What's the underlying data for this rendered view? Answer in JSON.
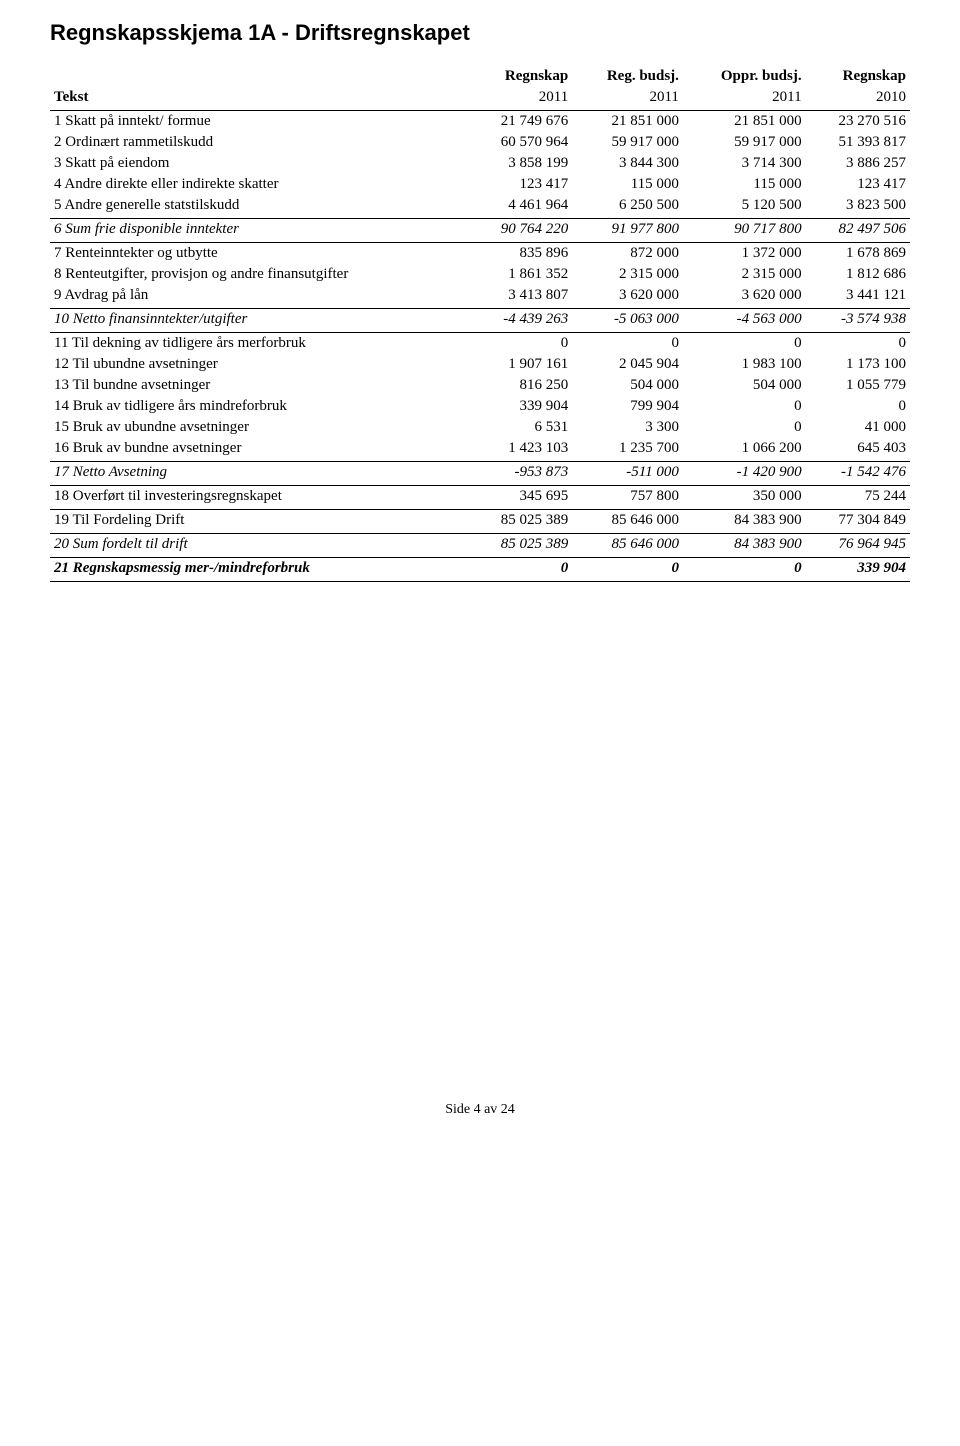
{
  "title": "Regnskapsskjema 1A - Driftsregnskapet",
  "header_top": [
    "",
    "Regnskap",
    "Reg. budsj.",
    "Oppr. budsj.",
    "Regnskap"
  ],
  "header_bottom": [
    "Tekst",
    "2011",
    "2011",
    "2011",
    "2010"
  ],
  "rows": [
    {
      "cls": "",
      "cells": [
        "1  Skatt på inntekt/ formue",
        "21 749 676",
        "21 851 000",
        "21 851 000",
        "23 270 516"
      ]
    },
    {
      "cls": "",
      "cells": [
        "2  Ordinært rammetilskudd",
        "60 570 964",
        "59 917 000",
        "59 917 000",
        "51 393 817"
      ]
    },
    {
      "cls": "",
      "cells": [
        "3  Skatt på eiendom",
        "3 858 199",
        "3 844 300",
        "3 714 300",
        "3 886 257"
      ]
    },
    {
      "cls": "",
      "cells": [
        "4  Andre direkte eller indirekte skatter",
        "123 417",
        "115 000",
        "115 000",
        "123 417"
      ]
    },
    {
      "cls": "sec-bot",
      "cells": [
        "5  Andre generelle statstilskudd",
        "4 461 964",
        "6 250 500",
        "5 120 500",
        "3 823 500"
      ]
    },
    {
      "cls": "italic sec-bot",
      "cells": [
        "6  Sum frie disponible inntekter",
        "90 764 220",
        "91 977 800",
        "90 717 800",
        "82 497 506"
      ]
    },
    {
      "cls": "",
      "cells": [
        "7  Renteinntekter og utbytte",
        "835 896",
        "872 000",
        "1 372 000",
        "1 678 869"
      ]
    },
    {
      "cls": "",
      "cells": [
        "8  Renteutgifter, provisjon og andre finansutgifter",
        "1 861 352",
        "2 315 000",
        "2 315 000",
        "1 812 686"
      ]
    },
    {
      "cls": "sec-bot",
      "cells": [
        "9  Avdrag på lån",
        "3 413 807",
        "3 620 000",
        "3 620 000",
        "3 441 121"
      ]
    },
    {
      "cls": "italic sec-bot",
      "cells": [
        "10  Netto finansinntekter/utgifter",
        "-4 439 263",
        "-5 063 000",
        "-4 563 000",
        "-3 574 938"
      ]
    },
    {
      "cls": "",
      "cells": [
        "11 Til dekning av tidligere års merforbruk",
        "0",
        "0",
        "0",
        "0"
      ]
    },
    {
      "cls": "",
      "cells": [
        "12 Til ubundne avsetninger",
        "1 907 161",
        "2 045 904",
        "1 983 100",
        "1 173 100"
      ]
    },
    {
      "cls": "",
      "cells": [
        "13 Til bundne avsetninger",
        "816 250",
        "504 000",
        "504 000",
        "1 055 779"
      ]
    },
    {
      "cls": "",
      "cells": [
        "14 Bruk av tidligere års mindreforbruk",
        "339 904",
        "799 904",
        "0",
        "0"
      ]
    },
    {
      "cls": "",
      "cells": [
        "15 Bruk av ubundne avsetninger",
        "6 531",
        "3 300",
        "0",
        "41 000"
      ]
    },
    {
      "cls": "sec-bot",
      "cells": [
        "16 Bruk av bundne avsetninger",
        "1 423 103",
        "1 235 700",
        "1 066 200",
        "645 403"
      ]
    },
    {
      "cls": "italic sec-bot",
      "cells": [
        "17  Netto Avsetning",
        "-953 873",
        "-511 000",
        "-1 420 900",
        "-1 542 476"
      ]
    },
    {
      "cls": "sec-bot",
      "cells": [
        "18 Overført til investeringsregnskapet",
        "345 695",
        "757 800",
        "350 000",
        "75 244"
      ]
    },
    {
      "cls": "sec-bot",
      "cells": [
        "19  Til Fordeling Drift",
        "85 025 389",
        "85 646 000",
        "84 383 900",
        "77 304 849"
      ]
    },
    {
      "cls": "italic sec-bot",
      "cells": [
        "20 Sum fordelt til drift",
        "85 025 389",
        "85 646 000",
        "84 383 900",
        "76 964 945"
      ]
    },
    {
      "cls": "bolditalic sec-bot",
      "cells": [
        "21  Regnskapsmessig mer-/mindreforbruk",
        "0",
        "0",
        "0",
        "339 904"
      ]
    }
  ],
  "footer": "Side 4 av 24",
  "colors": {
    "text": "#000000",
    "bg": "#ffffff",
    "border": "#000000"
  },
  "fontsize_body": 15,
  "fontsize_title": 22
}
